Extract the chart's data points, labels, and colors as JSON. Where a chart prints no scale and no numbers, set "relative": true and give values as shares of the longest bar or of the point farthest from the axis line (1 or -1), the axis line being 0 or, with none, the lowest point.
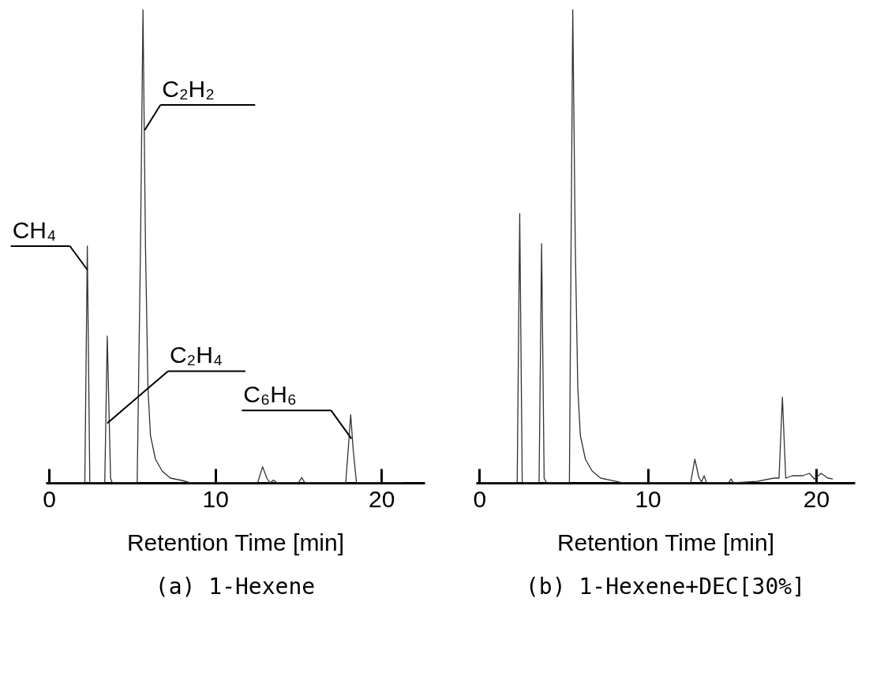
{
  "chart_data": [
    {
      "type": "line",
      "title": "(a) 1-Hexene",
      "xlabel": "Retention Time [min]",
      "relative": true,
      "xlim": [
        -0.2,
        22.6
      ],
      "xticks": [
        0,
        10,
        20
      ],
      "grid": false,
      "color": "#333333",
      "x": [
        -0.1,
        2.15,
        2.3,
        2.45,
        3.35,
        3.5,
        3.7,
        3.8,
        5.3,
        5.5,
        5.65,
        5.8,
        5.95,
        6.1,
        6.4,
        6.8,
        7.3,
        8.0,
        8.5,
        12.55,
        12.85,
        13.1,
        13.3,
        13.5,
        13.7,
        15.0,
        15.2,
        15.4,
        17.85,
        18.0,
        18.15,
        18.3,
        18.5,
        21.3
      ],
      "values": [
        0,
        0,
        0.5,
        0,
        0,
        0.31,
        0.01,
        0,
        0,
        0.5,
        1.0,
        0.5,
        0.2,
        0.1,
        0.05,
        0.025,
        0.01,
        0.005,
        0,
        0,
        0.034,
        0.01,
        0,
        0.006,
        0,
        0,
        0.011,
        0,
        0,
        0.07,
        0.144,
        0.07,
        0,
        0
      ],
      "annotations": [
        {
          "text": "CH₄",
          "x": 2.3,
          "y": 0.45
        },
        {
          "text": "C₂H₂",
          "x": 5.75,
          "y": 0.745
        },
        {
          "text": "C₂H₄",
          "x": 3.5,
          "y": 0.126
        },
        {
          "text": "C₆H₆",
          "x": 18.2,
          "y": 0.093
        }
      ]
    },
    {
      "type": "line",
      "title": "(b) 1-Hexene+DEC[30%]",
      "xlabel": "Retention Time [min]",
      "relative": true,
      "xlim": [
        -0.2,
        22.3
      ],
      "xticks": [
        0,
        10,
        20
      ],
      "grid": false,
      "color": "#333333",
      "x": [
        0.0,
        2.25,
        2.4,
        2.55,
        3.55,
        3.7,
        3.85,
        4.0,
        5.35,
        5.45,
        5.55,
        5.7,
        5.85,
        6.0,
        6.3,
        6.7,
        7.2,
        8.0,
        8.5,
        12.55,
        12.8,
        13.05,
        13.2,
        13.35,
        13.5,
        14.8,
        14.95,
        15.1,
        16.5,
        17.5,
        17.8,
        18.0,
        18.2,
        18.6,
        19.2,
        19.6,
        19.9,
        20.3,
        20.7,
        21.0
      ],
      "values": [
        0,
        0,
        0.569,
        0,
        0,
        0.505,
        0.01,
        0,
        0,
        0.5,
        1.0,
        0.5,
        0.2,
        0.1,
        0.05,
        0.025,
        0.01,
        0.004,
        0,
        0,
        0.05,
        0.01,
        0.002,
        0.015,
        0,
        0,
        0.008,
        0,
        0.003,
        0.01,
        0.01,
        0.181,
        0.01,
        0.015,
        0.015,
        0.02,
        0.008,
        0.02,
        0.01,
        0.008
      ]
    }
  ]
}
